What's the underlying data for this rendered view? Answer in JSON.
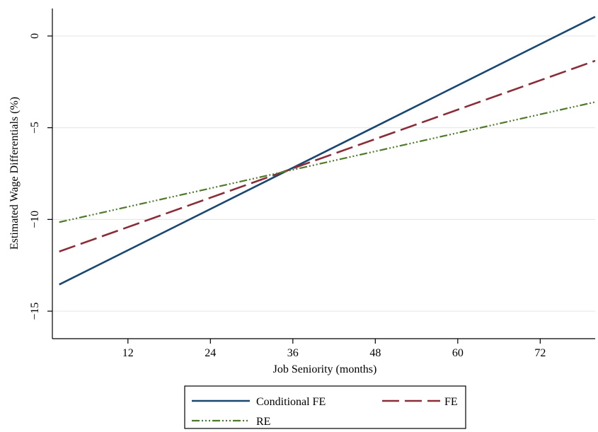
{
  "chart_data": {
    "type": "line",
    "title": "",
    "xlabel": "Job Seniority (months)",
    "ylabel": "Estimated Wage Differentials (%)",
    "xlim": [
      1,
      80
    ],
    "ylim": [
      -16.5,
      1.5
    ],
    "x_ticks": [
      12,
      24,
      36,
      48,
      60,
      72
    ],
    "x_tick_labels": [
      "12",
      "24",
      "36",
      "48",
      "60",
      "72"
    ],
    "y_ticks": [
      0,
      -5,
      -10,
      -15
    ],
    "y_tick_labels": [
      "0",
      "−5",
      "−10",
      "−15"
    ],
    "grid": true,
    "legend_position": "bottom",
    "series": [
      {
        "name": "Conditional FE",
        "color": "#1a4771",
        "style": "solid",
        "x": [
          2,
          80
        ],
        "y": [
          -13.55,
          1.05
        ]
      },
      {
        "name": "FE",
        "color": "#8b2d39",
        "style": "dash",
        "x": [
          2,
          80
        ],
        "y": [
          -11.75,
          -1.35
        ]
      },
      {
        "name": "RE",
        "color": "#4f7a2a",
        "style": "dashdot",
        "x": [
          2,
          80
        ],
        "y": [
          -10.15,
          -3.6
        ]
      }
    ]
  }
}
